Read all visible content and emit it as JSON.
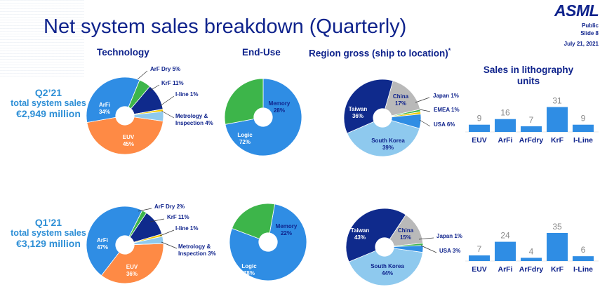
{
  "header": {
    "title": "Net system sales breakdown (Quarterly)",
    "logo": "ASML",
    "classification": "Public",
    "slide": "Slide 8",
    "date": "July 21, 2021"
  },
  "columns": {
    "technology": "Technology",
    "end_use": "End-Use",
    "region": "Region gross (ship to location)",
    "region_mark": "*",
    "units_line1": "Sales in lithography",
    "units_line2": "units"
  },
  "quarters": [
    {
      "label": "Q2’21",
      "sub": "total system sales",
      "amount": "€2,949 million"
    },
    {
      "label": "Q1’21",
      "sub": "total system sales",
      "amount": "€3,129 million"
    }
  ],
  "colors": {
    "EUV": "#fe8a45",
    "ArFi": "#2f8de4",
    "ArF Dry": "#3db54a",
    "KrF": "#0f2a8c",
    "I-line": "#f2c900",
    "Metrology": "#8ec9ee",
    "Logic": "#2f8de4",
    "Memory": "#3db54a",
    "Taiwan": "#0f2a8c",
    "China": "#b9b9b9",
    "Japan": "#3db54a",
    "EMEA": "#f2c900",
    "USA": "#2f8de4",
    "South Korea": "#8ec9ee",
    "bar": "#2f8de4"
  },
  "chart_data": [
    {
      "type": "pie",
      "title": "Technology",
      "period": "Q2’21",
      "slices": [
        {
          "key": "EUV",
          "label": "EUV",
          "pct": "45%",
          "value": 45
        },
        {
          "key": "ArFi",
          "label": "ArFi",
          "pct": "34%",
          "value": 34
        },
        {
          "key": "ArF Dry",
          "label": "ArF Dry",
          "pct": "5%",
          "value": 5
        },
        {
          "key": "KrF",
          "label": "KrF",
          "pct": "11%",
          "value": 11
        },
        {
          "key": "I-line",
          "label": "I-line",
          "pct": "1%",
          "value": 1
        },
        {
          "key": "Metrology",
          "label": "Metrology &",
          "label2": "Inspection",
          "pct": "4%",
          "value": 4
        }
      ]
    },
    {
      "type": "pie",
      "title": "End-Use",
      "period": "Q2’21",
      "slices": [
        {
          "key": "Logic",
          "label": "Logic",
          "pct": "72%",
          "value": 72
        },
        {
          "key": "Memory",
          "label": "Memory",
          "pct": "28%",
          "value": 28
        }
      ]
    },
    {
      "type": "pie",
      "title": "Region gross (ship to location)",
      "period": "Q2’21",
      "slices": [
        {
          "key": "South Korea",
          "label": "South Korea",
          "pct": "39%",
          "value": 39
        },
        {
          "key": "Taiwan",
          "label": "Taiwan",
          "pct": "36%",
          "value": 36
        },
        {
          "key": "China",
          "label": "China",
          "pct": "17%",
          "value": 17
        },
        {
          "key": "Japan",
          "label": "Japan",
          "pct": "1%",
          "value": 1
        },
        {
          "key": "EMEA",
          "label": "EMEA",
          "pct": "1%",
          "value": 1
        },
        {
          "key": "USA",
          "label": "USA",
          "pct": "6%",
          "value": 6
        }
      ]
    },
    {
      "type": "bar",
      "title": "Sales in lithography units",
      "period": "Q2’21",
      "categories": [
        "EUV",
        "ArFi",
        "ArFdry",
        "KrF",
        "I-Line"
      ],
      "values": [
        9,
        16,
        7,
        31,
        9
      ]
    },
    {
      "type": "pie",
      "title": "Technology",
      "period": "Q1’21",
      "slices": [
        {
          "key": "EUV",
          "label": "EUV",
          "pct": "36%",
          "value": 36
        },
        {
          "key": "ArFi",
          "label": "ArFi",
          "pct": "47%",
          "value": 47
        },
        {
          "key": "ArF Dry",
          "label": "ArF Dry",
          "pct": "2%",
          "value": 2
        },
        {
          "key": "KrF",
          "label": "KrF",
          "pct": "11%",
          "value": 11
        },
        {
          "key": "I-line",
          "label": "I-line",
          "pct": "1%",
          "value": 1
        },
        {
          "key": "Metrology",
          "label": "Metrology &",
          "label2": "Inspection",
          "pct": "3%",
          "value": 3
        }
      ]
    },
    {
      "type": "pie",
      "title": "End-Use",
      "period": "Q1’21",
      "slices": [
        {
          "key": "Logic",
          "label": "Logic",
          "pct": "78%",
          "value": 78
        },
        {
          "key": "Memory",
          "label": "Memory",
          "pct": "22%",
          "value": 22
        }
      ]
    },
    {
      "type": "pie",
      "title": "Region gross (ship to location)",
      "period": "Q1’21",
      "slices": [
        {
          "key": "South Korea",
          "label": "South Korea",
          "pct": "44%",
          "value": 44
        },
        {
          "key": "Taiwan",
          "label": "Taiwan",
          "pct": "43%",
          "value": 43
        },
        {
          "key": "China",
          "label": "China",
          "pct": "15%",
          "value": 15
        },
        {
          "key": "Japan",
          "label": "Japan",
          "pct": "1%",
          "value": 1
        },
        {
          "key": "USA",
          "label": "USA",
          "pct": "3%",
          "value": 3
        }
      ]
    },
    {
      "type": "bar",
      "title": "Sales in lithography units",
      "period": "Q1’21",
      "categories": [
        "EUV",
        "ArFi",
        "ArFdry",
        "KrF",
        "I-Line"
      ],
      "values": [
        7,
        24,
        4,
        35,
        6
      ]
    }
  ]
}
